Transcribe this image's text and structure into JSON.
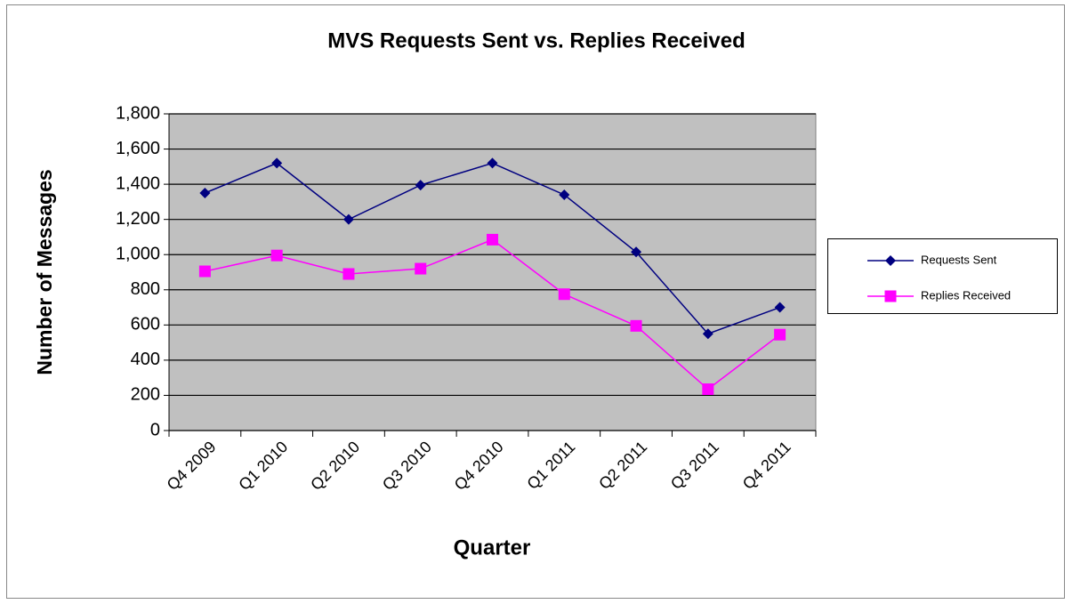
{
  "chart_data": {
    "type": "line",
    "title": "MVS Requests Sent vs. Replies Received",
    "x_label": "Quarter",
    "y_label": "Number of Messages",
    "categories": [
      "Q4 2009",
      "Q1 2010",
      "Q2 2010",
      "Q3 2010",
      "Q4 2010",
      "Q1 2011",
      "Q2 2011",
      "Q3 2011",
      "Q4 2011"
    ],
    "series": [
      {
        "name": "Requests Sent",
        "color": "#000080",
        "marker": "diamond",
        "values": [
          1350,
          1520,
          1200,
          1395,
          1520,
          1340,
          1015,
          550,
          700
        ]
      },
      {
        "name": "Replies Received",
        "color": "#ff00ff",
        "marker": "square",
        "values": [
          905,
          995,
          890,
          920,
          1085,
          775,
          595,
          235,
          545
        ]
      }
    ],
    "ylim": [
      0,
      1800
    ],
    "yticks": [
      0,
      200,
      400,
      600,
      800,
      {
        "value": 1000,
        "label": "1,000"
      },
      {
        "value": 1200,
        "label": "1,200"
      },
      {
        "value": 1400,
        "label": "1,400"
      },
      {
        "value": 1600,
        "label": "1,600"
      },
      {
        "value": 1800,
        "label": "1,800"
      }
    ],
    "grid": true,
    "legend": "right"
  }
}
